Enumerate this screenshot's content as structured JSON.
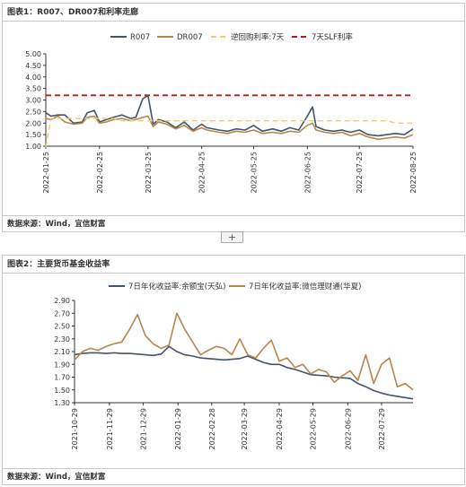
{
  "charts": {
    "chart1": {
      "title": "图表1：R007、DR007和利率走廊",
      "source": "数据来源：Wind，宜信财富"
    },
    "chart2": {
      "title": "图表2：主要货币基金收益率",
      "source": "数据来源：Wind，宜信财富"
    }
  },
  "expand_label": "+",
  "colors": {
    "series1": "#44546a",
    "series2": "#b8864b",
    "series3": "#e8cf6f",
    "series4": "#c0171c"
  },
  "chart_data": [
    {
      "type": "line",
      "title": "图表1：R007、DR007和利率走廊",
      "ylim": [
        1.0,
        5.0
      ],
      "yticks": [
        "5.00",
        "4.50",
        "4.00",
        "3.50",
        "3.00",
        "2.50",
        "2.00",
        "1.50",
        "1.00"
      ],
      "xticks": [
        "2022-01-25",
        "2022-02-25",
        "2022-03-25",
        "2022-04-25",
        "2022-05-25",
        "2022-06-25",
        "2022-07-25",
        "2022-08-25"
      ],
      "x": [
        "2022-01-25",
        "2022-01-28",
        "2022-02-01",
        "2022-02-05",
        "2022-02-10",
        "2022-02-15",
        "2022-02-18",
        "2022-02-22",
        "2022-02-25",
        "2022-03-01",
        "2022-03-05",
        "2022-03-10",
        "2022-03-15",
        "2022-03-18",
        "2022-03-22",
        "2022-03-25",
        "2022-03-28",
        "2022-03-31",
        "2022-04-05",
        "2022-04-10",
        "2022-04-15",
        "2022-04-20",
        "2022-04-25",
        "2022-04-28",
        "2022-05-05",
        "2022-05-10",
        "2022-05-15",
        "2022-05-20",
        "2022-05-25",
        "2022-05-30",
        "2022-06-05",
        "2022-06-10",
        "2022-06-15",
        "2022-06-20",
        "2022-06-25",
        "2022-06-28",
        "2022-06-30",
        "2022-07-05",
        "2022-07-10",
        "2022-07-15",
        "2022-07-20",
        "2022-07-25",
        "2022-07-30",
        "2022-08-05",
        "2022-08-10",
        "2022-08-15",
        "2022-08-20",
        "2022-08-25"
      ],
      "series": [
        {
          "name": "R007",
          "values": [
            2.45,
            2.3,
            2.35,
            2.35,
            2.0,
            2.05,
            2.45,
            2.55,
            2.05,
            2.15,
            2.25,
            2.35,
            2.2,
            2.25,
            3.05,
            3.2,
            1.95,
            2.15,
            2.05,
            1.8,
            2.05,
            1.7,
            1.95,
            1.8,
            1.7,
            1.65,
            1.75,
            1.7,
            1.9,
            1.65,
            1.75,
            1.65,
            1.8,
            1.7,
            2.3,
            2.7,
            1.85,
            1.7,
            1.65,
            1.7,
            1.6,
            1.7,
            1.5,
            1.45,
            1.5,
            1.55,
            1.5,
            1.75
          ]
        },
        {
          "name": "DR007",
          "values": [
            2.2,
            2.15,
            2.3,
            2.05,
            1.95,
            2.0,
            2.25,
            2.3,
            2.0,
            2.05,
            2.15,
            2.2,
            2.1,
            2.15,
            2.25,
            2.3,
            1.85,
            2.05,
            1.95,
            1.75,
            1.9,
            1.65,
            1.8,
            1.7,
            1.6,
            1.55,
            1.65,
            1.6,
            1.7,
            1.55,
            1.6,
            1.55,
            1.65,
            1.6,
            1.9,
            2.0,
            1.7,
            1.6,
            1.55,
            1.6,
            1.45,
            1.55,
            1.4,
            1.3,
            1.35,
            1.4,
            1.35,
            1.5
          ]
        },
        {
          "name": "逆回购利率:7天",
          "values": [
            0.95,
            2.2,
            2.2,
            2.2,
            2.2,
            2.2,
            2.2,
            2.2,
            2.2,
            2.2,
            2.2,
            2.1,
            2.1,
            2.1,
            2.1,
            2.1,
            2.1,
            2.1,
            2.1,
            2.1,
            2.1,
            2.1,
            2.1,
            2.1,
            2.1,
            2.1,
            2.1,
            2.1,
            2.1,
            2.1,
            2.1,
            2.1,
            2.1,
            2.1,
            2.1,
            2.1,
            2.1,
            2.1,
            2.1,
            2.1,
            2.1,
            2.1,
            2.1,
            2.1,
            2.1,
            2.0,
            2.0,
            2.0
          ]
        },
        {
          "name": "7天SLF利率",
          "values": [
            3.2,
            3.2,
            3.2,
            3.2,
            3.2,
            3.2,
            3.2,
            3.2,
            3.2,
            3.2,
            3.2,
            3.2,
            3.2,
            3.2,
            3.2,
            3.2,
            3.2,
            3.2,
            3.2,
            3.2,
            3.2,
            3.2,
            3.2,
            3.2,
            3.2,
            3.2,
            3.2,
            3.2,
            3.2,
            3.2,
            3.2,
            3.2,
            3.2,
            3.2,
            3.2,
            3.2,
            3.2,
            3.2,
            3.2,
            3.2,
            3.2,
            3.2,
            3.2,
            3.2,
            3.2,
            3.2,
            3.2,
            3.2
          ]
        }
      ]
    },
    {
      "type": "line",
      "title": "图表2：主要货币基金收益率",
      "ylim": [
        1.3,
        2.9
      ],
      "yticks": [
        "2.90",
        "2.70",
        "2.50",
        "2.30",
        "2.10",
        "1.90",
        "1.70",
        "1.50",
        "1.30"
      ],
      "xticks": [
        "2021-10-29",
        "2021-11-29",
        "2021-12-29",
        "2022-01-29",
        "2022-02-28",
        "2022-03-29",
        "2022-04-29",
        "2022-05-29",
        "2022-06-29",
        "2022-07-29"
      ],
      "x": [
        "2021-10-29",
        "2021-11-05",
        "2021-11-12",
        "2021-11-19",
        "2021-11-26",
        "2021-12-03",
        "2021-12-10",
        "2021-12-17",
        "2021-12-24",
        "2021-12-31",
        "2022-01-07",
        "2022-01-14",
        "2022-01-21",
        "2022-01-28",
        "2022-02-04",
        "2022-02-11",
        "2022-02-18",
        "2022-02-25",
        "2022-03-04",
        "2022-03-11",
        "2022-03-18",
        "2022-03-25",
        "2022-04-01",
        "2022-04-08",
        "2022-04-15",
        "2022-04-22",
        "2022-04-29",
        "2022-05-06",
        "2022-05-13",
        "2022-05-20",
        "2022-05-27",
        "2022-06-03",
        "2022-06-10",
        "2022-06-17",
        "2022-06-24",
        "2022-07-01",
        "2022-07-08",
        "2022-07-15",
        "2022-07-22",
        "2022-07-29",
        "2022-08-05",
        "2022-08-12",
        "2022-08-19",
        "2022-08-26"
      ],
      "series": [
        {
          "name": "7日年化收益率:余额宝(天弘)",
          "values": [
            2.05,
            2.07,
            2.08,
            2.08,
            2.07,
            2.08,
            2.07,
            2.07,
            2.06,
            2.05,
            2.04,
            2.06,
            2.18,
            2.1,
            2.05,
            2.03,
            2.0,
            1.99,
            1.98,
            1.97,
            1.98,
            1.99,
            2.03,
            1.98,
            1.93,
            1.9,
            1.9,
            1.85,
            1.82,
            1.78,
            1.74,
            1.73,
            1.72,
            1.7,
            1.69,
            1.68,
            1.6,
            1.55,
            1.49,
            1.45,
            1.42,
            1.4,
            1.38,
            1.36
          ]
        },
        {
          "name": "7日年化收益率:微信理财通(华夏)",
          "values": [
            1.97,
            2.1,
            2.15,
            2.12,
            2.18,
            2.22,
            2.25,
            2.45,
            2.68,
            2.35,
            2.22,
            2.15,
            2.2,
            2.7,
            2.45,
            2.25,
            2.05,
            2.12,
            2.18,
            2.15,
            2.05,
            2.3,
            2.05,
            2.0,
            2.15,
            2.28,
            1.95,
            2.0,
            1.85,
            1.9,
            1.75,
            1.82,
            1.78,
            1.62,
            1.72,
            1.8,
            1.65,
            2.05,
            1.6,
            1.9,
            2.0,
            1.55,
            1.6,
            1.5
          ]
        }
      ]
    }
  ]
}
